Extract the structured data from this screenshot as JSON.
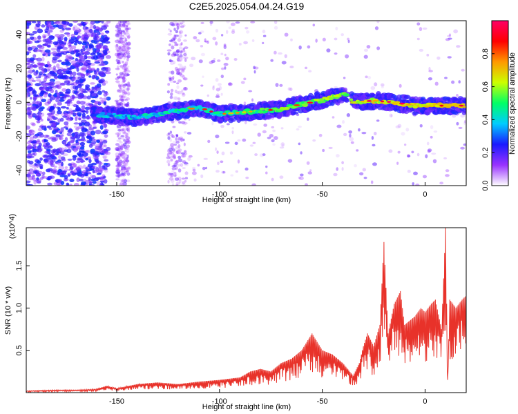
{
  "title": "C2E5.2025.054.04.24.G19",
  "chart_data": [
    {
      "type": "heatmap",
      "xlabel": "Height of straight line (km)",
      "ylabel": "Frequency (Hz)",
      "xlim": [
        -194,
        20
      ],
      "ylim": [
        -49,
        48
      ],
      "xticks": [
        -150,
        -100,
        -50,
        0
      ],
      "xtick_labels": [
        "-150",
        "-100",
        "-50",
        "0"
      ],
      "yticks": [
        -40,
        -20,
        0,
        20,
        40
      ],
      "ytick_labels": [
        "-40",
        "-20",
        "0",
        "20",
        "40"
      ],
      "colorbar": {
        "label": "Normalized spectral amplitude",
        "range": [
          0,
          1
        ],
        "ticks": [
          0.0,
          0.2,
          0.4,
          0.6,
          0.8
        ],
        "tick_labels": [
          "0.0",
          "0.2",
          "0.4",
          "0.6",
          "0.8"
        ],
        "colormap": [
          "#ffffff",
          "#9933ff",
          "#1a1aff",
          "#00ccff",
          "#00ff66",
          "#ccff00",
          "#ff9900",
          "#ff0000",
          "#ff0066"
        ]
      },
      "ridge_points": [
        {
          "x": -160,
          "y": -7
        },
        {
          "x": -150,
          "y": -8
        },
        {
          "x": -140,
          "y": -9
        },
        {
          "x": -130,
          "y": -7
        },
        {
          "x": -120,
          "y": -5
        },
        {
          "x": -110,
          "y": -3
        },
        {
          "x": -100,
          "y": -7
        },
        {
          "x": -90,
          "y": -6
        },
        {
          "x": -80,
          "y": -5
        },
        {
          "x": -70,
          "y": -4
        },
        {
          "x": -60,
          "y": -1
        },
        {
          "x": -50,
          "y": 1
        },
        {
          "x": -40,
          "y": 5
        },
        {
          "x": -35,
          "y": 0
        },
        {
          "x": -25,
          "y": 1
        },
        {
          "x": -15,
          "y": 0
        },
        {
          "x": -5,
          "y": -2
        },
        {
          "x": 5,
          "y": -2
        },
        {
          "x": 15,
          "y": -2
        }
      ]
    },
    {
      "type": "line",
      "xlabel": "Height of straight line (km)",
      "ylabel": "SNR (10 * v/v)",
      "y_multiplier": "(x10^4)",
      "xlim": [
        -194,
        20
      ],
      "ylim": [
        0,
        1.95
      ],
      "xticks": [
        -150,
        -100,
        -50,
        0
      ],
      "xtick_labels": [
        "-150",
        "-100",
        "-50",
        "0"
      ],
      "yticks": [
        0.5,
        1.0,
        1.5
      ],
      "ytick_labels": [
        "0.5",
        "1.0",
        "1.5"
      ],
      "color": "#e8322a",
      "series": [
        {
          "x": [
            -194,
            -180,
            -170,
            -160,
            -155,
            -150,
            -140,
            -130,
            -120,
            -110,
            -100,
            -90,
            -85,
            -80,
            -75,
            -70,
            -65,
            -60,
            -55,
            -50,
            -45,
            -40,
            -35,
            -32,
            -30,
            -28,
            -25,
            -22,
            -20,
            -18,
            -15,
            -12,
            -10,
            -5,
            -2,
            0,
            3,
            5,
            8,
            10,
            11,
            12,
            15,
            18,
            20
          ],
          "y": [
            0.02,
            0.03,
            0.03,
            0.04,
            0.08,
            0.05,
            0.1,
            0.12,
            0.1,
            0.13,
            0.15,
            0.18,
            0.25,
            0.28,
            0.25,
            0.35,
            0.4,
            0.5,
            0.7,
            0.5,
            0.45,
            0.35,
            0.2,
            0.35,
            0.55,
            0.7,
            0.55,
            0.8,
            1.78,
            0.7,
            1.05,
            1.2,
            0.8,
            0.9,
            1.0,
            0.95,
            1.05,
            1.1,
            0.75,
            1.95,
            0.15,
            1.1,
            1.0,
            1.1,
            1.15
          ]
        }
      ]
    }
  ]
}
